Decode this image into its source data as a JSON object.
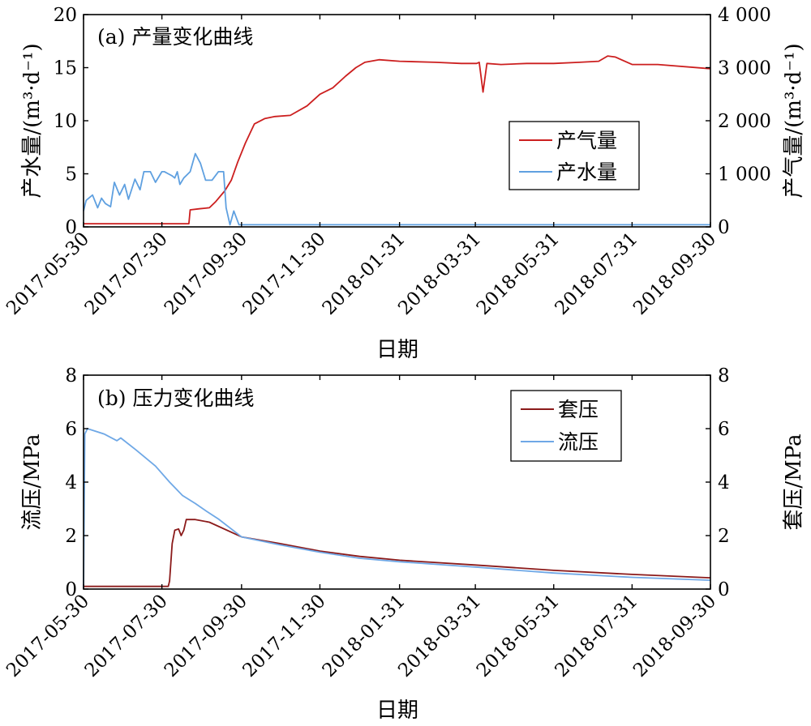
{
  "chart_data": [
    {
      "type": "line",
      "title": "(a) 产量变化曲线",
      "xlabel": "日期",
      "ylabel_left": "产水量/(m³·d⁻¹)",
      "ylabel_right": "产气量/(m³·d⁻¹)",
      "x_tick_labels": [
        "2017-05-30",
        "2017-07-30",
        "2017-09-30",
        "2017-11-30",
        "2018-01-31",
        "2018-03-31",
        "2018-05-31",
        "2018-07-31",
        "2018-09-30"
      ],
      "ylim_left": [
        0,
        20
      ],
      "ylim_right": [
        0,
        4000
      ],
      "y_ticks_left": [
        "0",
        "5",
        "10",
        "15",
        "20"
      ],
      "y_ticks_right": [
        "0",
        "1 000",
        "2 000",
        "3 000",
        "4 000"
      ],
      "legend_position": "right-middle",
      "grid": false,
      "series": [
        {
          "name": "产气量",
          "axis": "right",
          "color": "#cc1f1f",
          "points": [
            [
              "2017-05-30",
              60
            ],
            [
              "2017-08-20",
              60
            ],
            [
              "2017-08-21",
              320
            ],
            [
              "2017-08-28",
              340
            ],
            [
              "2017-09-05",
              360
            ],
            [
              "2017-09-10",
              480
            ],
            [
              "2017-09-17",
              680
            ],
            [
              "2017-09-22",
              880
            ],
            [
              "2017-09-27",
              1220
            ],
            [
              "2017-10-03",
              1580
            ],
            [
              "2017-10-10",
              1940
            ],
            [
              "2017-10-18",
              2040
            ],
            [
              "2017-10-26",
              2080
            ],
            [
              "2017-11-07",
              2100
            ],
            [
              "2017-11-20",
              2280
            ],
            [
              "2017-11-30",
              2500
            ],
            [
              "2017-12-10",
              2620
            ],
            [
              "2017-12-20",
              2840
            ],
            [
              "2017-12-28",
              3000
            ],
            [
              "2018-01-04",
              3100
            ],
            [
              "2018-01-15",
              3150
            ],
            [
              "2018-01-31",
              3120
            ],
            [
              "2018-02-28",
              3100
            ],
            [
              "2018-03-20",
              3080
            ],
            [
              "2018-04-01",
              3080
            ],
            [
              "2018-04-03",
              3100
            ],
            [
              "2018-04-06",
              2540
            ],
            [
              "2018-04-09",
              3080
            ],
            [
              "2018-04-20",
              3060
            ],
            [
              "2018-05-10",
              3080
            ],
            [
              "2018-05-31",
              3080
            ],
            [
              "2018-06-20",
              3100
            ],
            [
              "2018-07-05",
              3120
            ],
            [
              "2018-07-12",
              3220
            ],
            [
              "2018-07-18",
              3200
            ],
            [
              "2018-07-31",
              3060
            ],
            [
              "2018-08-20",
              3060
            ],
            [
              "2018-09-30",
              2980
            ]
          ]
        },
        {
          "name": "产水量",
          "axis": "left",
          "color": "#5fa0e0",
          "points": [
            [
              "2017-05-30",
              1.5
            ],
            [
              "2017-06-01",
              2.5
            ],
            [
              "2017-06-06",
              3.0
            ],
            [
              "2017-06-10",
              1.8
            ],
            [
              "2017-06-13",
              2.7
            ],
            [
              "2017-06-16",
              2.2
            ],
            [
              "2017-06-20",
              1.9
            ],
            [
              "2017-06-23",
              4.2
            ],
            [
              "2017-06-27",
              3.0
            ],
            [
              "2017-07-01",
              4.0
            ],
            [
              "2017-07-04",
              2.6
            ],
            [
              "2017-07-09",
              4.5
            ],
            [
              "2017-07-13",
              3.5
            ],
            [
              "2017-07-16",
              5.2
            ],
            [
              "2017-07-21",
              5.2
            ],
            [
              "2017-07-25",
              4.2
            ],
            [
              "2017-07-30",
              5.2
            ],
            [
              "2017-08-01",
              5.2
            ],
            [
              "2017-08-04",
              5.0
            ],
            [
              "2017-08-07",
              4.8
            ],
            [
              "2017-08-09",
              4.6
            ],
            [
              "2017-08-11",
              5.2
            ],
            [
              "2017-08-13",
              4.0
            ],
            [
              "2017-08-16",
              4.6
            ],
            [
              "2017-08-21",
              5.2
            ],
            [
              "2017-08-25",
              6.9
            ],
            [
              "2017-08-29",
              6.0
            ],
            [
              "2017-09-02",
              4.4
            ],
            [
              "2017-09-07",
              4.4
            ],
            [
              "2017-09-12",
              5.2
            ],
            [
              "2017-09-16",
              5.2
            ],
            [
              "2017-09-18",
              1.8
            ],
            [
              "2017-09-21",
              0.2
            ],
            [
              "2017-09-24",
              1.5
            ],
            [
              "2017-09-28",
              0.2
            ],
            [
              "2017-10-10",
              0.2
            ],
            [
              "2018-09-30",
              0.2
            ]
          ]
        }
      ]
    },
    {
      "type": "line",
      "title": "(b) 压力变化曲线",
      "xlabel": "日期",
      "ylabel_left": "流压/MPa",
      "ylabel_right": "套压/MPa",
      "x_tick_labels": [
        "2017-05-30",
        "2017-07-30",
        "2017-09-30",
        "2017-11-30",
        "2018-01-31",
        "2018-03-31",
        "2018-05-31",
        "2018-07-31",
        "2018-09-30"
      ],
      "ylim_left": [
        0,
        8
      ],
      "ylim_right": [
        0,
        8
      ],
      "y_ticks_left": [
        "0",
        "2",
        "4",
        "6",
        "8"
      ],
      "y_ticks_right": [
        "0",
        "2",
        "4",
        "6",
        "8"
      ],
      "legend_position": "top-right",
      "grid": false,
      "series": [
        {
          "name": "套压",
          "axis": "right",
          "color": "#8b1a1a",
          "points": [
            [
              "2017-05-30",
              0.1
            ],
            [
              "2017-08-04",
              0.1
            ],
            [
              "2017-08-05",
              0.3
            ],
            [
              "2017-08-07",
              1.7
            ],
            [
              "2017-08-09",
              2.2
            ],
            [
              "2017-08-12",
              2.25
            ],
            [
              "2017-08-14",
              2.0
            ],
            [
              "2017-08-16",
              2.2
            ],
            [
              "2017-08-18",
              2.6
            ],
            [
              "2017-08-25",
              2.6
            ],
            [
              "2017-09-05",
              2.5
            ],
            [
              "2017-09-30",
              1.95
            ],
            [
              "2017-10-30",
              1.7
            ],
            [
              "2017-11-30",
              1.42
            ],
            [
              "2017-12-31",
              1.22
            ],
            [
              "2018-01-31",
              1.08
            ],
            [
              "2018-03-31",
              0.9
            ],
            [
              "2018-05-31",
              0.7
            ],
            [
              "2018-07-31",
              0.55
            ],
            [
              "2018-09-30",
              0.42
            ]
          ]
        },
        {
          "name": "流压",
          "axis": "left",
          "color": "#6fa8e6",
          "points": [
            [
              "2017-05-30",
              0.0
            ],
            [
              "2017-05-31",
              5.8
            ],
            [
              "2017-06-02",
              6.0
            ],
            [
              "2017-06-15",
              5.8
            ],
            [
              "2017-06-25",
              5.55
            ],
            [
              "2017-06-28",
              5.65
            ],
            [
              "2017-07-10",
              5.2
            ],
            [
              "2017-07-25",
              4.6
            ],
            [
              "2017-08-05",
              4.0
            ],
            [
              "2017-08-15",
              3.5
            ],
            [
              "2017-08-25",
              3.2
            ],
            [
              "2017-09-03",
              2.9
            ],
            [
              "2017-09-12",
              2.62
            ],
            [
              "2017-09-30",
              1.95
            ],
            [
              "2017-10-30",
              1.65
            ],
            [
              "2017-11-30",
              1.38
            ],
            [
              "2017-12-31",
              1.15
            ],
            [
              "2018-01-31",
              1.02
            ],
            [
              "2018-03-31",
              0.82
            ],
            [
              "2018-05-31",
              0.6
            ],
            [
              "2018-07-31",
              0.44
            ],
            [
              "2018-09-30",
              0.33
            ]
          ]
        }
      ]
    }
  ]
}
